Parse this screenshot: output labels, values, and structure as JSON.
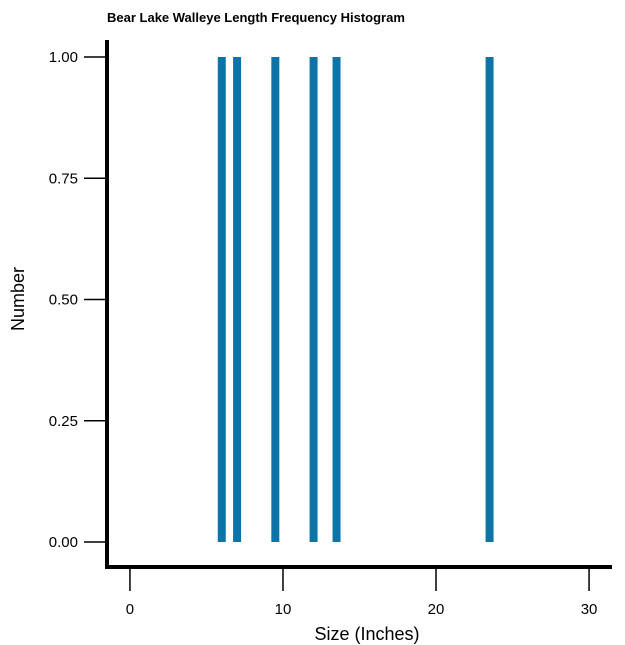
{
  "chart_data": {
    "type": "bar",
    "title": "Bear Lake Walleye Length Frequency Histogram",
    "xlabel": "Size (Inches)",
    "ylabel": "Number",
    "xlim": [
      -1.5,
      31.5
    ],
    "ylim": [
      0,
      1
    ],
    "xticks": [
      0,
      10,
      20,
      30
    ],
    "xtick_labels": [
      "0",
      "10",
      "20",
      "30"
    ],
    "yticks": [
      0,
      0.25,
      0.5,
      0.75,
      1.0
    ],
    "ytick_labels": [
      "0.00",
      "0.25",
      "0.50",
      "0.75",
      "1.00"
    ],
    "bar_color": "#0d74a8",
    "series": [
      {
        "x": [
          6.0,
          7.0,
          9.5,
          12.0,
          13.5,
          23.5
        ],
        "values": [
          1,
          1,
          1,
          1,
          1,
          1
        ]
      }
    ]
  }
}
